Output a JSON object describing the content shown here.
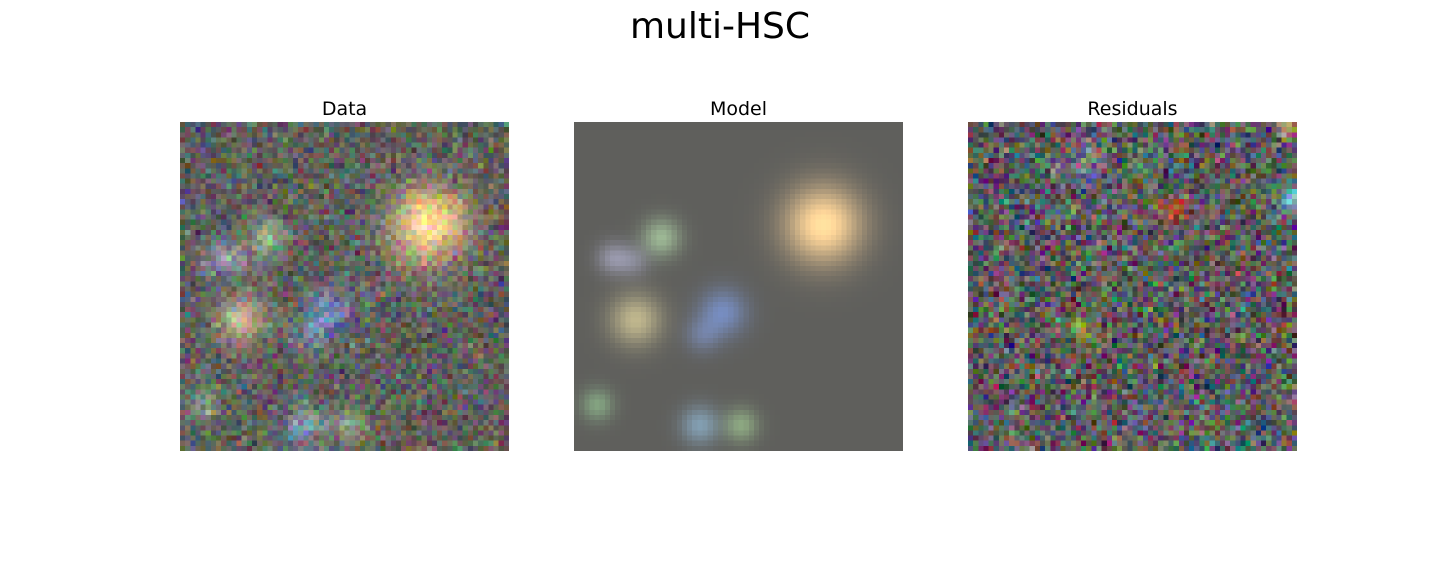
{
  "figure": {
    "title": "multi-HSC"
  },
  "panels": [
    {
      "title": "Data"
    },
    {
      "title": "Model"
    },
    {
      "title": "Residuals"
    }
  ]
}
